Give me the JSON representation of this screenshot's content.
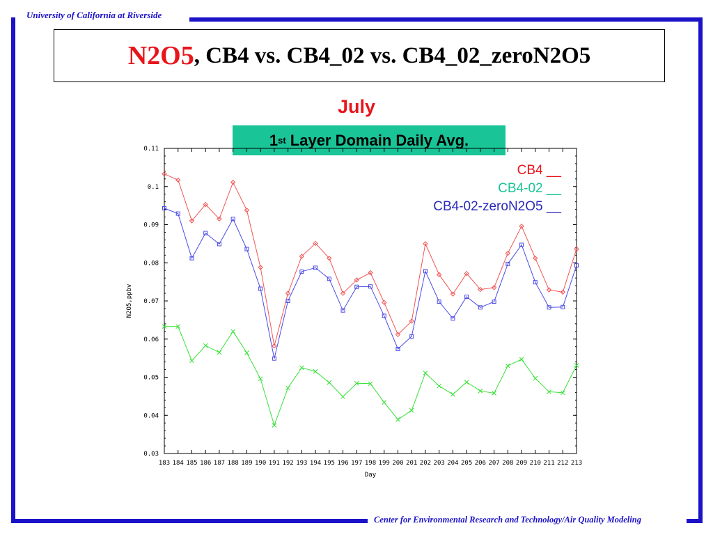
{
  "slide": {
    "header": "University of California at Riverside",
    "footer": "Center for Environmental Research and Technology/Air Quality Modeling",
    "title_part1": "N2O5",
    "title_part2": ", CB4 vs. CB4_02 vs. CB4_02_zeroN2O5",
    "month": "July",
    "subtitle_pre": "1",
    "subtitle_sup": "st",
    "subtitle_post": " Layer Domain Daily Avg.",
    "brand_color": "#1c12c8"
  },
  "chart_data": {
    "type": "line",
    "xlabel": "Day",
    "ylabel": "N2O5,ppbv",
    "ylim": [
      0.03,
      0.11
    ],
    "yticks": [
      "0.03",
      "0.04",
      "0.05",
      "0.06",
      "0.07",
      "0.08",
      "0.09",
      "0.1",
      "0.11"
    ],
    "x": [
      183,
      184,
      185,
      186,
      187,
      188,
      189,
      190,
      191,
      192,
      193,
      194,
      195,
      196,
      197,
      198,
      199,
      200,
      201,
      202,
      203,
      204,
      205,
      206,
      207,
      208,
      209,
      210,
      211,
      212,
      213
    ],
    "grid": false,
    "legend_position": "top-right",
    "series": [
      {
        "name": "CB4 __",
        "color": "#f05555",
        "label_color": "#e8151b",
        "marker": "diamond",
        "values": [
          0.1033,
          0.1017,
          0.091,
          0.0953,
          0.0915,
          0.1011,
          0.0938,
          0.0788,
          0.0582,
          0.072,
          0.0817,
          0.0851,
          0.0812,
          0.072,
          0.0755,
          0.0774,
          0.0696,
          0.0612,
          0.0647,
          0.085,
          0.0769,
          0.0718,
          0.0772,
          0.073,
          0.0735,
          0.0825,
          0.0896,
          0.0812,
          0.0729,
          0.0723,
          0.0836
        ]
      },
      {
        "name": "CB4-02 __",
        "color": "#37e037",
        "label_color": "#19c497",
        "marker": "cross",
        "values": [
          0.0633,
          0.0633,
          0.0543,
          0.0583,
          0.0565,
          0.062,
          0.0564,
          0.0496,
          0.0374,
          0.0472,
          0.0525,
          0.0515,
          0.0486,
          0.0449,
          0.0484,
          0.0483,
          0.0434,
          0.0389,
          0.0413,
          0.0511,
          0.0477,
          0.0455,
          0.0487,
          0.0464,
          0.0458,
          0.053,
          0.0547,
          0.0497,
          0.0462,
          0.0459,
          0.0531
        ]
      },
      {
        "name": "CB4-02-zeroN2O5 __",
        "color": "#4a4ae6",
        "label_color": "#2a2ab8",
        "marker": "square",
        "values": [
          0.0943,
          0.0929,
          0.0812,
          0.0878,
          0.0849,
          0.0915,
          0.0836,
          0.0732,
          0.0549,
          0.07,
          0.0777,
          0.0787,
          0.0758,
          0.0675,
          0.0737,
          0.0738,
          0.0661,
          0.0574,
          0.0607,
          0.0778,
          0.0698,
          0.0654,
          0.0711,
          0.0683,
          0.0698,
          0.0797,
          0.0847,
          0.0749,
          0.0683,
          0.0684,
          0.0793
        ]
      }
    ]
  }
}
